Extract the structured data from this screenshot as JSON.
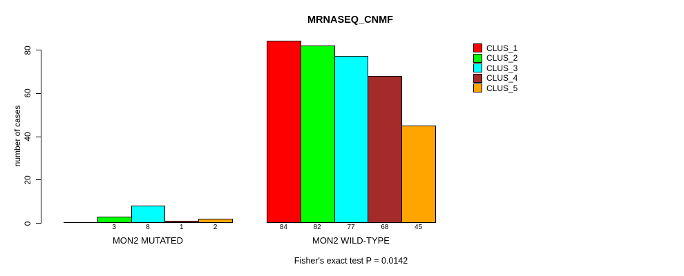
{
  "chart_data": {
    "type": "bar",
    "title": "MRNASEQ_CNMF",
    "ylabel": "number of cases",
    "yticks": [
      0,
      20,
      40,
      60,
      80
    ],
    "ylim": [
      0,
      84
    ],
    "grid": false,
    "legend_position": "top-right",
    "series": [
      {
        "name": "CLUS_1",
        "color": "#FF0000"
      },
      {
        "name": "CLUS_2",
        "color": "#00FF00"
      },
      {
        "name": "CLUS_3",
        "color": "#00FFFF"
      },
      {
        "name": "CLUS_4",
        "color": "#A52A2A"
      },
      {
        "name": "CLUS_5",
        "color": "#FFA500"
      }
    ],
    "groups": [
      {
        "label": "MON2 MUTATED",
        "values": [
          0,
          3,
          8,
          1,
          2
        ],
        "value_labels": [
          "",
          "3",
          "8",
          "1",
          "2"
        ]
      },
      {
        "label": "MON2 WILD-TYPE",
        "values": [
          84,
          82,
          77,
          68,
          45
        ],
        "value_labels": [
          "84",
          "82",
          "77",
          "68",
          "45"
        ]
      }
    ],
    "annotation": "Fisher's exact test P = 0.0142"
  }
}
